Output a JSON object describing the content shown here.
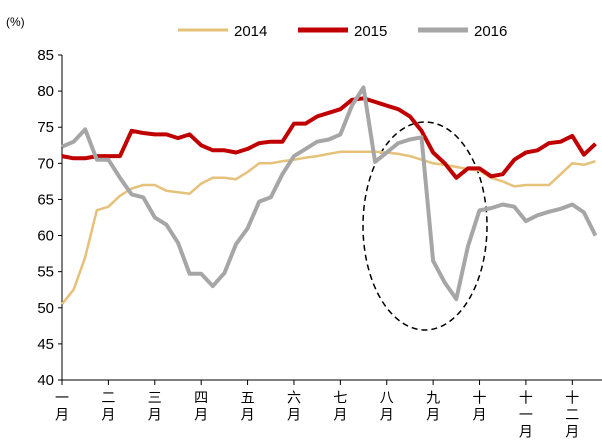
{
  "chart_data": {
    "type": "line",
    "y_unit": "(%)",
    "x": [
      0,
      0.25,
      0.5,
      0.75,
      1,
      1.25,
      1.5,
      1.75,
      2,
      2.25,
      2.5,
      2.75,
      3,
      3.25,
      3.5,
      3.75,
      4,
      4.25,
      4.5,
      4.75,
      5,
      5.25,
      5.5,
      5.75,
      6,
      6.25,
      6.5,
      6.75,
      7,
      7.25,
      7.5,
      7.75,
      8,
      8.25,
      8.5,
      8.75,
      9,
      9.25,
      9.5,
      9.75,
      10,
      10.25,
      10.5,
      10.75,
      11,
      11.25,
      11.5
    ],
    "series": [
      {
        "name": "2014",
        "color": "#E6C17A",
        "values": [
          50.5,
          52.5,
          57,
          63.5,
          64,
          65.5,
          66.5,
          67,
          67,
          66.2,
          66,
          65.8,
          67.2,
          68,
          68,
          67.8,
          68.8,
          70,
          70,
          70.3,
          70.5,
          70.8,
          71,
          71.3,
          71.6,
          71.6,
          71.6,
          71.6,
          71.5,
          71.3,
          71,
          70.5,
          70,
          69.8,
          69.5,
          69.2,
          69,
          68,
          67.5,
          66.8,
          67,
          67,
          67,
          68.5,
          70,
          69.8,
          70.3
        ]
      },
      {
        "name": "2015",
        "color": "#C00000",
        "values": [
          71,
          70.7,
          70.7,
          71,
          71,
          71,
          74.5,
          74.2,
          74,
          74,
          73.5,
          74,
          72.5,
          71.8,
          71.8,
          71.5,
          72,
          72.8,
          73,
          73,
          75.5,
          75.5,
          76.5,
          77,
          77.5,
          78.8,
          79,
          78.5,
          78,
          77.5,
          76.5,
          74.5,
          71.5,
          70,
          68,
          69.3,
          69.3,
          68.2,
          68.5,
          70.5,
          71.5,
          71.8,
          72.8,
          73,
          73.8,
          71.2,
          72.7
        ]
      },
      {
        "name": "2016",
        "color": "#A6A6A6",
        "values": [
          72.3,
          73,
          74.7,
          70.5,
          70.5,
          68,
          65.7,
          65.3,
          62.5,
          61.5,
          59,
          54.7,
          54.7,
          53,
          54.8,
          58.8,
          61,
          64.7,
          65.3,
          68.5,
          71,
          72,
          73,
          73.3,
          74,
          78,
          80.5,
          70.2,
          71.5,
          72.8,
          73.3,
          73.6,
          56.5,
          53.5,
          51.2,
          58.5,
          63.5,
          63.8,
          64.3,
          64,
          62,
          62.8,
          63.3,
          63.7,
          64.3,
          63.2,
          60
        ]
      }
    ],
    "xlim": [
      0,
      11.64
    ],
    "xticks": [
      {
        "value": 0,
        "label": "一月"
      },
      {
        "value": 1,
        "label": "二月"
      },
      {
        "value": 2,
        "label": "三月"
      },
      {
        "value": 3,
        "label": "四月"
      },
      {
        "value": 4,
        "label": "五月"
      },
      {
        "value": 5,
        "label": "六月"
      },
      {
        "value": 6,
        "label": "七月"
      },
      {
        "value": 7,
        "label": "八月"
      },
      {
        "value": 8,
        "label": "九月"
      },
      {
        "value": 9,
        "label": "十月"
      },
      {
        "value": 10,
        "label": "十一月"
      },
      {
        "value": 11,
        "label": "十二月"
      }
    ],
    "ylim": [
      40,
      85
    ],
    "yticks": [
      40,
      45,
      50,
      55,
      60,
      65,
      70,
      75,
      80,
      85
    ],
    "legend": "top"
  }
}
